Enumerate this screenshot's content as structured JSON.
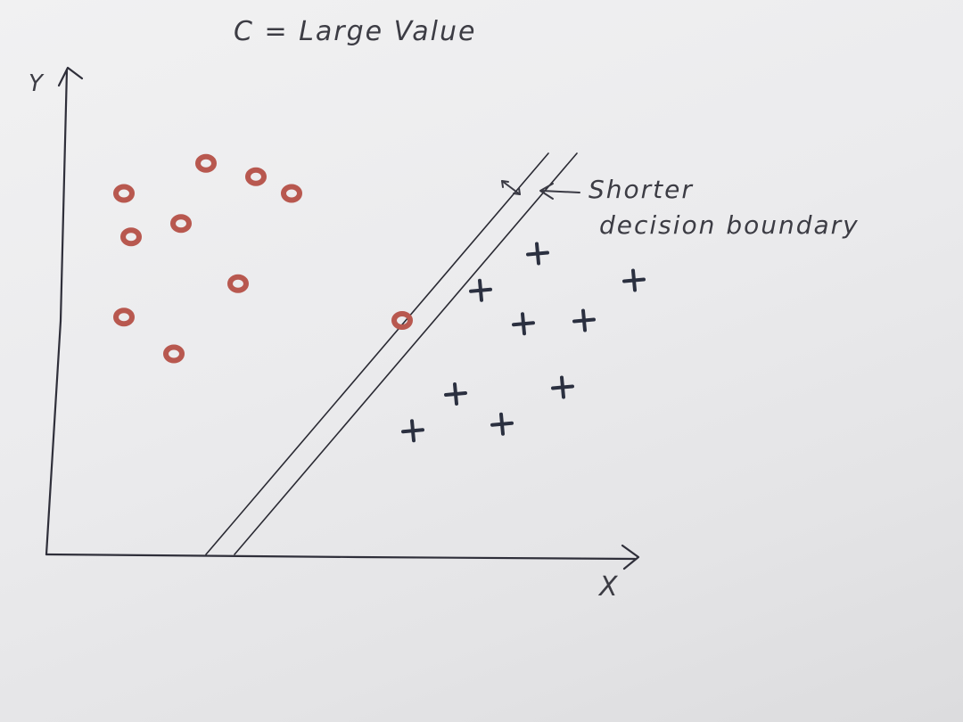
{
  "title": "C = Large Value",
  "axes": {
    "x_label": "X",
    "y_label": "Y"
  },
  "annotation": {
    "line1": "Shorter",
    "line2": "decision boundary"
  },
  "colors": {
    "circle": "#b8584f",
    "plus": "#2b3040",
    "ink": "#2f2f3a"
  },
  "class_a": {
    "symbol": "circle",
    "points": [
      [
        1.05,
        5.4
      ],
      [
        2.9,
        5.65
      ],
      [
        2.2,
        5.85
      ],
      [
        3.4,
        5.4
      ],
      [
        1.15,
        4.75
      ],
      [
        1.85,
        4.95
      ],
      [
        2.65,
        4.05
      ],
      [
        1.05,
        3.55
      ],
      [
        1.75,
        3.0
      ],
      [
        4.95,
        3.5
      ]
    ]
  },
  "class_b": {
    "symbol": "plus",
    "points": [
      [
        6.85,
        4.5
      ],
      [
        8.2,
        4.1
      ],
      [
        6.05,
        3.95
      ],
      [
        6.65,
        3.45
      ],
      [
        7.5,
        3.5
      ],
      [
        7.2,
        2.5
      ],
      [
        5.7,
        2.4
      ],
      [
        6.35,
        1.95
      ],
      [
        5.1,
        1.85
      ]
    ]
  },
  "boundary": {
    "line1": {
      "from": [
        2.2,
        0.0
      ],
      "to": [
        7.0,
        6.0
      ]
    },
    "line2": {
      "from": [
        2.6,
        0.0
      ],
      "to": [
        7.4,
        6.0
      ]
    }
  }
}
